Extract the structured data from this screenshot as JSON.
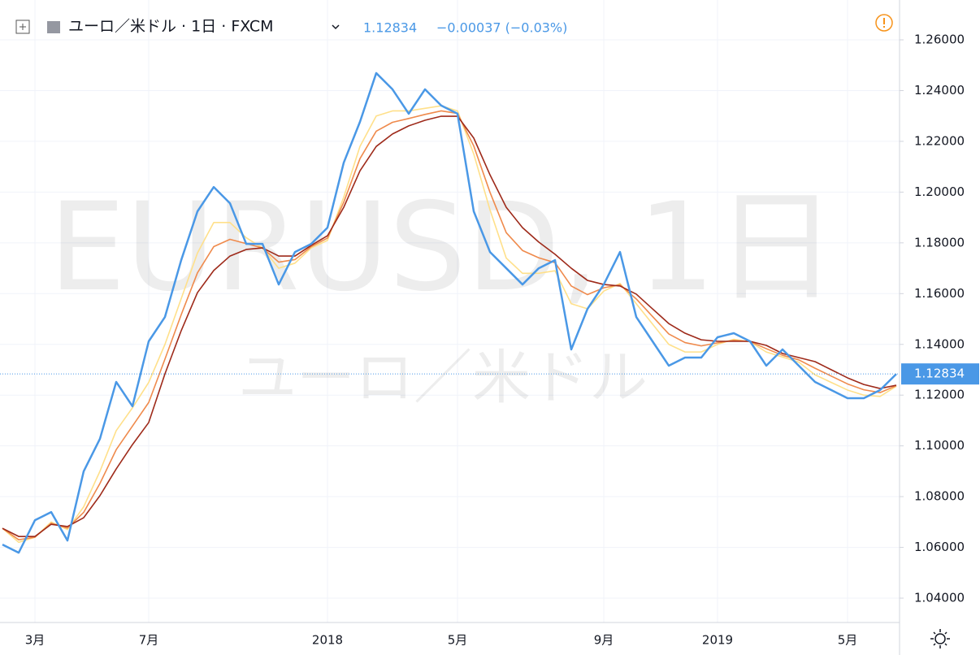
{
  "header": {
    "title": "ユーロ／米ドル · 1日 · FXCM",
    "change": "−0.00037 (−0.03%)"
  },
  "watermark": {
    "title": "EURUSD, 1日",
    "subtitle": "ユーロ／米ドル"
  },
  "chart_data": {
    "type": "line",
    "categories": [
      null,
      null,
      "3月",
      null,
      null,
      null,
      null,
      null,
      null,
      "7月",
      null,
      null,
      null,
      null,
      null,
      null,
      null,
      null,
      null,
      null,
      "2018",
      null,
      null,
      null,
      null,
      null,
      null,
      null,
      "5月",
      null,
      null,
      null,
      null,
      null,
      null,
      null,
      null,
      "9月",
      null,
      null,
      null,
      null,
      null,
      null,
      "2019",
      null,
      null,
      null,
      null,
      null,
      null,
      null,
      "5月",
      null,
      null,
      null
    ],
    "series": [
      {
        "color": "#ffe08a",
        "values": [
          1.0675,
          1.062,
          1.064,
          1.07,
          1.067,
          1.076,
          1.09,
          1.106,
          1.115,
          1.125,
          1.14,
          1.158,
          1.176,
          1.188,
          1.188,
          1.182,
          1.178,
          1.17,
          1.172,
          1.178,
          1.181,
          1.198,
          1.218,
          1.23,
          1.232,
          1.232,
          1.233,
          1.234,
          1.232,
          1.215,
          1.193,
          1.174,
          1.168,
          1.168,
          1.169,
          1.156,
          1.154,
          1.161,
          1.164,
          1.156,
          1.148,
          1.14,
          1.137,
          1.137,
          1.14,
          1.142,
          1.141,
          1.137,
          1.135,
          1.133,
          1.128,
          1.125,
          1.122,
          1.12,
          1.1195,
          1.1235
        ]
      },
      {
        "color": "#ef8a4c",
        "values": [
          1.0675,
          1.063,
          1.064,
          1.0695,
          1.0676,
          1.0738,
          1.0852,
          1.0985,
          1.1078,
          1.1171,
          1.1342,
          1.1517,
          1.1682,
          1.1785,
          1.1814,
          1.1797,
          1.178,
          1.1724,
          1.1734,
          1.1785,
          1.1819,
          1.196,
          1.2132,
          1.224,
          1.2275,
          1.229,
          1.2306,
          1.232,
          1.231,
          1.2182,
          1.1999,
          1.184,
          1.177,
          1.1741,
          1.1722,
          1.163,
          1.1596,
          1.1623,
          1.1635,
          1.1579,
          1.151,
          1.1441,
          1.1407,
          1.1394,
          1.1406,
          1.1416,
          1.1411,
          1.1383,
          1.1357,
          1.1339,
          1.1306,
          1.1275,
          1.1244,
          1.1221,
          1.121,
          1.1237
        ]
      },
      {
        "color": "#9e2a1a",
        "values": [
          1.0675,
          1.0643,
          1.0643,
          1.0691,
          1.0682,
          1.0717,
          1.0804,
          1.0909,
          1.1005,
          1.1092,
          1.1284,
          1.1454,
          1.1604,
          1.1691,
          1.1748,
          1.1774,
          1.178,
          1.1748,
          1.1748,
          1.179,
          1.1828,
          1.194,
          1.2084,
          1.218,
          1.2229,
          1.2261,
          1.2283,
          1.2299,
          1.2299,
          1.2213,
          1.2068,
          1.194,
          1.186,
          1.1803,
          1.1755,
          1.17,
          1.1652,
          1.1636,
          1.163,
          1.1598,
          1.154,
          1.1482,
          1.1444,
          1.1418,
          1.1412,
          1.1412,
          1.1412,
          1.1396,
          1.1364,
          1.1348,
          1.1332,
          1.13,
          1.1268,
          1.1242,
          1.1226,
          1.1239
        ]
      },
      {
        "color": "#4a98e6",
        "values": [
          1.0611,
          1.0579,
          1.0707,
          1.0739,
          1.0627,
          1.09,
          1.1028,
          1.1252,
          1.1156,
          1.1412,
          1.1508,
          1.1732,
          1.1924,
          1.202,
          1.1956,
          1.1796,
          1.1796,
          1.1636,
          1.1764,
          1.1796,
          1.186,
          1.2116,
          1.2277,
          1.2469,
          1.2405,
          1.2309,
          1.2405,
          1.2341,
          1.2309,
          1.1924,
          1.1764,
          1.17,
          1.1636,
          1.17,
          1.1732,
          1.138,
          1.154,
          1.1636,
          1.1764,
          1.1508,
          1.1412,
          1.1316,
          1.1348,
          1.1348,
          1.1428,
          1.1444,
          1.1412,
          1.1316,
          1.138,
          1.1316,
          1.1252,
          1.122,
          1.1188,
          1.1188,
          1.122,
          1.1283
        ]
      }
    ],
    "last_price": 1.12834,
    "last_price_color": "#4a98e6",
    "ylim": [
      1.0304,
      1.2757
    ],
    "yticks": [
      {
        "value": 1.04,
        "label": "1.04000"
      },
      {
        "value": 1.06,
        "label": "1.06000"
      },
      {
        "value": 1.08,
        "label": "1.08000"
      },
      {
        "value": 1.1,
        "label": "1.10000"
      },
      {
        "value": 1.12,
        "label": "1.12000"
      },
      {
        "value": 1.14,
        "label": "1.14000"
      },
      {
        "value": 1.16,
        "label": "1.16000"
      },
      {
        "value": 1.18,
        "label": "1.18000"
      },
      {
        "value": 1.2,
        "label": "1.20000"
      },
      {
        "value": 1.22,
        "label": "1.22000"
      },
      {
        "value": 1.24,
        "label": "1.24000"
      },
      {
        "value": 1.26,
        "label": "1.26000"
      }
    ],
    "grid": true
  }
}
